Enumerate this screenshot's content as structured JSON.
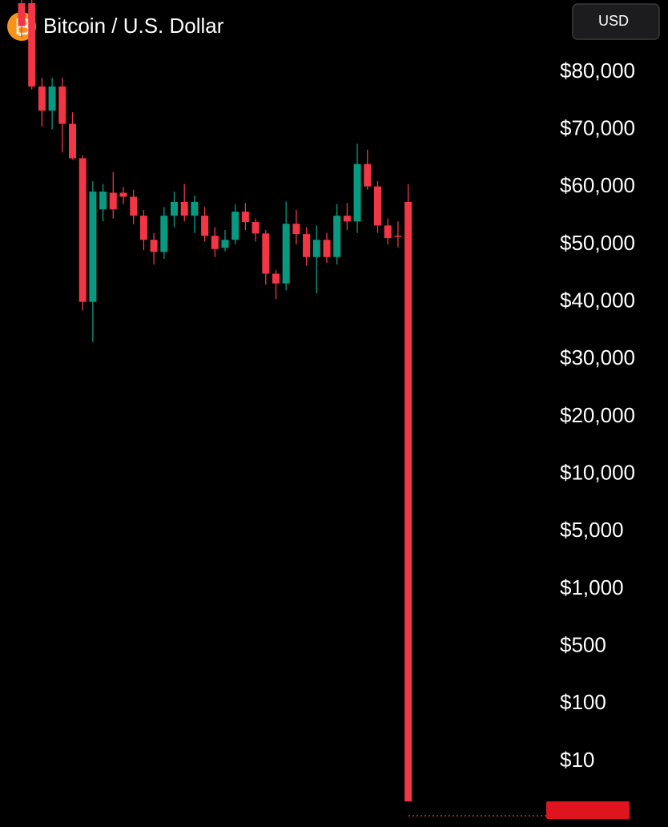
{
  "chart_data": {
    "type": "candlestick",
    "title": "Bitcoin / U.S. Dollar",
    "currency_button": "USD",
    "up_color": "#089981",
    "down_color": "#f23645",
    "open": [
      92000,
      92000,
      77500,
      73300,
      77500,
      71000,
      65000,
      40000,
      56100,
      59000,
      59000,
      58300,
      55000,
      50800,
      48700,
      55000,
      57400,
      55000,
      55000,
      51500,
      49400,
      50800,
      55700,
      53900,
      51900,
      44900,
      43200,
      53600,
      51800,
      47800,
      50800,
      47800,
      55000,
      54000,
      64000,
      60100,
      53300,
      51500,
      57400
    ],
    "high": [
      93000,
      93000,
      79000,
      79000,
      79000,
      73000,
      65500,
      61000,
      60500,
      62600,
      60000,
      59500,
      56000,
      52000,
      56500,
      59200,
      60500,
      58500,
      56500,
      53000,
      52500,
      57000,
      57200,
      54500,
      52500,
      45500,
      57500,
      56000,
      53000,
      53300,
      52000,
      57000,
      57200,
      67500,
      66500,
      61000,
      54500,
      54000,
      60500
    ],
    "low": [
      86000,
      77000,
      70500,
      70000,
      66000,
      64800,
      38500,
      33000,
      54000,
      54500,
      57000,
      53500,
      49000,
      46500,
      47500,
      53000,
      54000,
      52000,
      50500,
      47800,
      48800,
      50000,
      52500,
      50500,
      43000,
      40500,
      42000,
      50000,
      46300,
      41500,
      46800,
      46500,
      52500,
      52000,
      59500,
      52000,
      50000,
      49500,
      2
    ],
    "close": [
      88000,
      77500,
      73300,
      77500,
      71000,
      65000,
      40000,
      59200,
      59200,
      56100,
      58300,
      55000,
      50800,
      48700,
      55000,
      57400,
      55000,
      57400,
      51500,
      49200,
      50800,
      55700,
      53900,
      51900,
      44900,
      43200,
      53600,
      51800,
      47800,
      50800,
      47800,
      55000,
      54000,
      64000,
      60100,
      53300,
      51100,
      51300,
      2
    ],
    "yticks": [
      {
        "value": 80000,
        "label": "$80,000"
      },
      {
        "value": 70000,
        "label": "$70,000"
      },
      {
        "value": 60000,
        "label": "$60,000"
      },
      {
        "value": 50000,
        "label": "$50,000"
      },
      {
        "value": 40000,
        "label": "$40,000"
      },
      {
        "value": 30000,
        "label": "$30,000"
      },
      {
        "value": 20000,
        "label": "$20,000"
      },
      {
        "value": 10000,
        "label": "$10,000"
      },
      {
        "value": 5000,
        "label": "$5,000"
      },
      {
        "value": 1000,
        "label": "$1,000"
      },
      {
        "value": 500,
        "label": "$500"
      },
      {
        "value": 100,
        "label": "$100"
      },
      {
        "value": 10,
        "label": "$10"
      }
    ]
  }
}
